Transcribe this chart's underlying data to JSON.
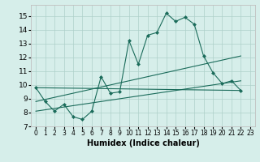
{
  "xlabel": "Humidex (Indice chaleur)",
  "background_color": "#d6eeea",
  "grid_color": "#aed0ca",
  "line_color": "#1a6b5a",
  "spine_color": "#c0c0c0",
  "xlim": [
    -0.5,
    23.5
  ],
  "ylim": [
    7,
    15.8
  ],
  "yticks": [
    7,
    8,
    9,
    10,
    11,
    12,
    13,
    14,
    15
  ],
  "xticks": [
    0,
    1,
    2,
    3,
    4,
    5,
    6,
    7,
    8,
    9,
    10,
    11,
    12,
    13,
    14,
    15,
    16,
    17,
    18,
    19,
    20,
    21,
    22,
    23
  ],
  "series1_x": [
    0,
    1,
    2,
    3,
    4,
    5,
    6,
    7,
    8,
    9,
    10,
    11,
    12,
    13,
    14,
    15,
    16,
    17,
    18,
    19,
    20,
    21,
    22
  ],
  "series1_y": [
    9.8,
    8.8,
    8.1,
    8.6,
    7.7,
    7.5,
    8.1,
    10.6,
    9.4,
    9.5,
    13.2,
    11.5,
    13.6,
    13.8,
    15.2,
    14.6,
    14.9,
    14.4,
    12.1,
    10.9,
    10.1,
    10.3,
    9.6
  ],
  "trend1_x": [
    0,
    22
  ],
  "trend1_y": [
    9.8,
    9.6
  ],
  "trend2_x": [
    0,
    22
  ],
  "trend2_y": [
    8.1,
    10.3
  ],
  "trend3_x": [
    0,
    22
  ],
  "trend3_y": [
    8.8,
    12.1
  ]
}
